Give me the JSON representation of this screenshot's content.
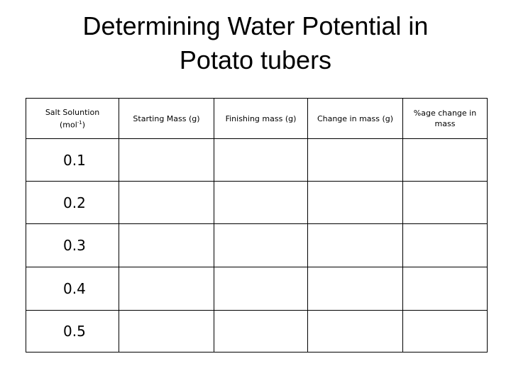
{
  "title": {
    "line1": "Determining Water Potential in",
    "line2": "Potato tubers"
  },
  "table": {
    "headers": [
      {
        "text": "Salt Soluntion",
        "unit": "(mol",
        "sup": "-1",
        "close": ")"
      },
      "Starting Mass (g)",
      "Finishing mass (g)",
      "Change in mass (g)",
      "%age change in mass"
    ],
    "rows": [
      "0.1",
      "0.2",
      "0.3",
      "0.4",
      "0.5"
    ]
  }
}
